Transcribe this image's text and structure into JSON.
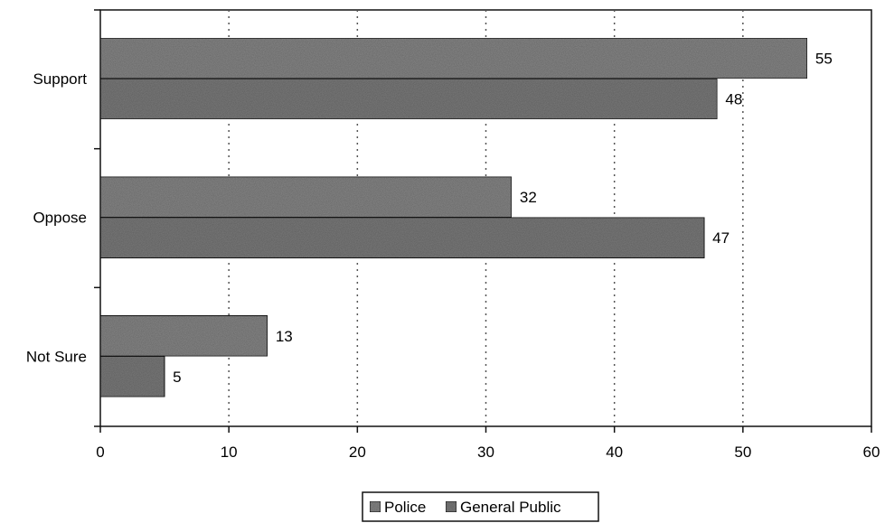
{
  "chart_data": {
    "type": "bar",
    "orientation": "horizontal",
    "categories": [
      "Support",
      "Oppose",
      "Not Sure"
    ],
    "series": [
      {
        "name": "Police",
        "values": [
          55,
          32,
          13
        ]
      },
      {
        "name": "General Public",
        "values": [
          48,
          47,
          5
        ]
      }
    ],
    "title": "",
    "xlabel": "",
    "ylabel": "",
    "xlim": [
      0,
      60
    ],
    "x_ticks": [
      0,
      10,
      20,
      30,
      40,
      50,
      60
    ],
    "grid": "vertical dotted",
    "legend_position": "bottom-center",
    "colors": {
      "police": "#8a8a8a",
      "general_public": "#7e7e7e",
      "outline": "#111111",
      "grid": "#555555"
    }
  }
}
